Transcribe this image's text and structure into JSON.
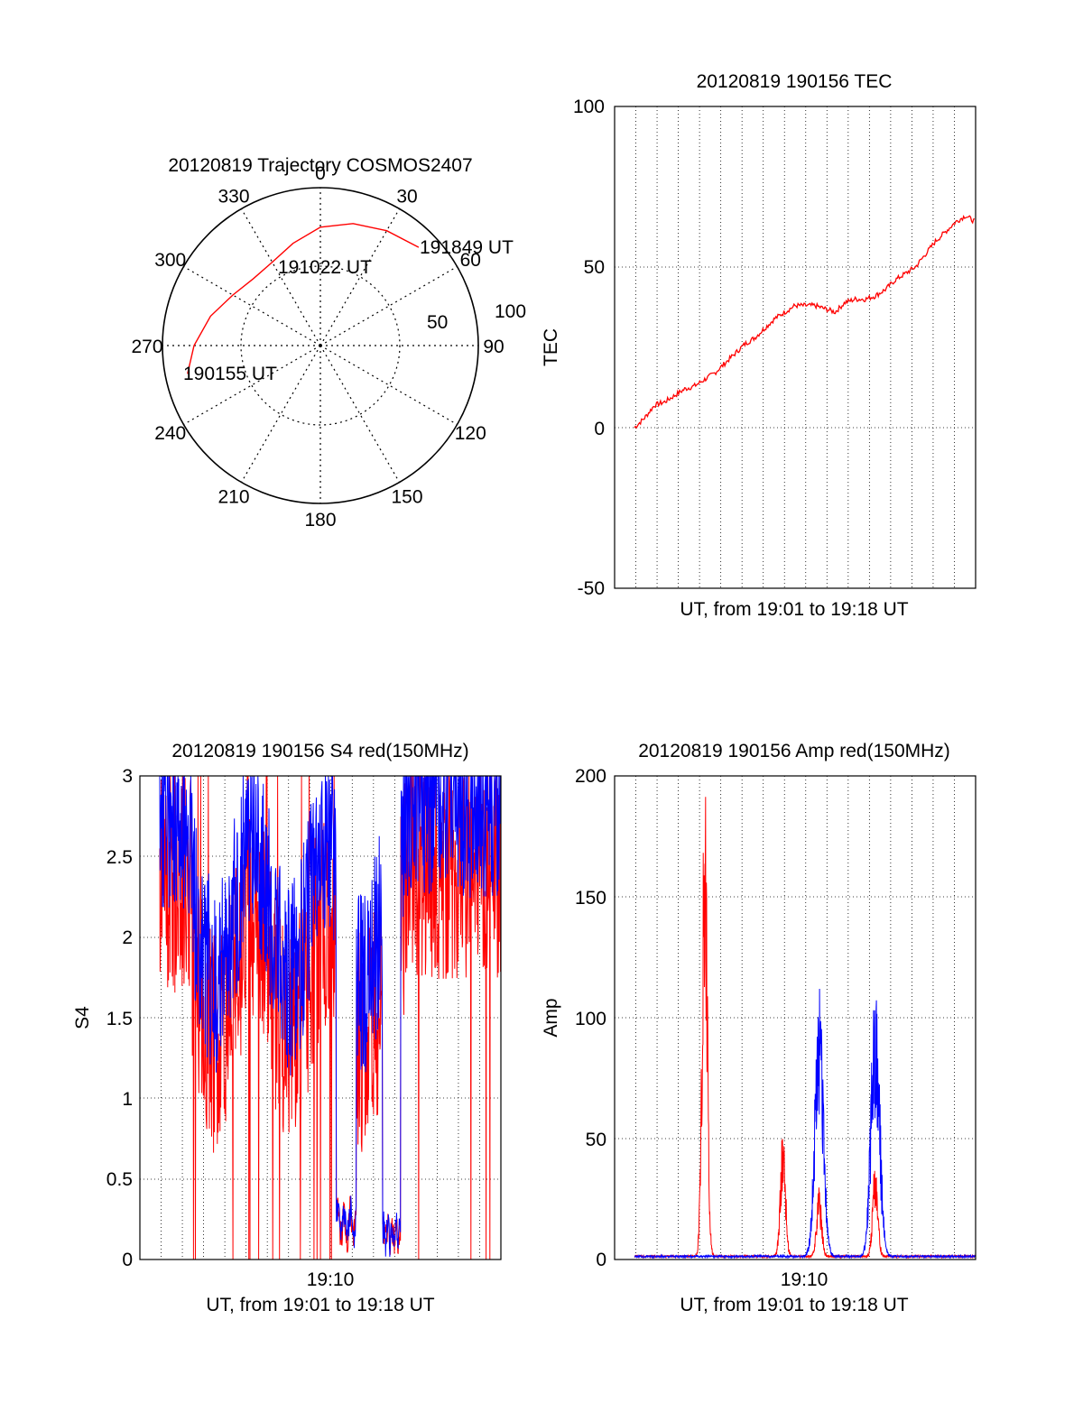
{
  "chart_data": [
    {
      "type": "polar",
      "title": "20120819 Trajectory COSMOS2407",
      "angle_labels": [
        "0",
        "30",
        "60",
        "90",
        "120",
        "150",
        "180",
        "210",
        "240",
        "270",
        "300",
        "330"
      ],
      "radial_labels": [
        "50",
        "100"
      ],
      "trajectory_color": "#ff0000",
      "trajectory": [
        {
          "az": 258,
          "el_radius": 86
        },
        {
          "az": 270,
          "el_radius": 80
        },
        {
          "az": 285,
          "el_radius": 72
        },
        {
          "az": 300,
          "el_radius": 64
        },
        {
          "az": 315,
          "el_radius": 60
        },
        {
          "az": 330,
          "el_radius": 61
        },
        {
          "az": 345,
          "el_radius": 67
        },
        {
          "az": 360,
          "el_radius": 75
        },
        {
          "az": 15,
          "el_radius": 80
        },
        {
          "az": 30,
          "el_radius": 84
        },
        {
          "az": 45,
          "el_radius": 88
        }
      ],
      "annotations": [
        {
          "text": "191849 UT",
          "az": 50,
          "el_radius": 88
        },
        {
          "text": "191022 UT",
          "az": 0,
          "el_radius": 85
        },
        {
          "text": "190155 UT",
          "az": 258,
          "el_radius": 86
        }
      ]
    },
    {
      "type": "line",
      "title": "20120819 190156 TEC",
      "ylabel": "TEC",
      "xlabel": "UT, from 19:01 to 19:18 UT",
      "ylim": [
        -50,
        100
      ],
      "yticks": [
        "-50",
        "0",
        "50",
        "100"
      ],
      "grid": true,
      "series": [
        {
          "color": "#ff0000",
          "x": [
            0,
            0.5,
            1,
            1.5,
            2,
            2.5,
            3,
            3.5,
            4,
            4.5,
            5,
            5.5,
            6,
            6.5,
            7,
            7.5,
            8,
            8.5,
            9,
            9.5,
            10,
            10.5,
            11,
            11.5,
            12,
            12.5,
            13,
            13.5,
            14,
            14.5,
            15,
            15.5,
            16,
            16.5,
            17
          ],
          "values": [
            0,
            3,
            7,
            8,
            10,
            12,
            13,
            15,
            17,
            20,
            23,
            26,
            28,
            31,
            34,
            36,
            38,
            38,
            38,
            37,
            36,
            39,
            40,
            40,
            41,
            43,
            46,
            48,
            50,
            54,
            58,
            61,
            64,
            66,
            64
          ]
        }
      ]
    },
    {
      "type": "line",
      "title": "20120819 190156 S4 red(150MHz)",
      "ylabel": "S4",
      "xlabel": "UT, from 19:01 to 19:18 UT",
      "xtick_label": "19:10",
      "ylim": [
        0,
        3
      ],
      "yticks": [
        "0",
        "0.5",
        "1",
        "1.5",
        "2",
        "2.5",
        "3"
      ],
      "grid": true,
      "series": [
        {
          "color": "#ff0000"
        },
        {
          "color": "#0000ff"
        }
      ]
    },
    {
      "type": "line",
      "title": "20120819 190156 Amp red(150MHz)",
      "ylabel": "Amp",
      "xlabel": "UT, from 19:01 to 19:18 UT",
      "xtick_label": "19:10",
      "ylim": [
        0,
        200
      ],
      "yticks": [
        "0",
        "50",
        "100",
        "150",
        "200"
      ],
      "grid": true,
      "series": [
        {
          "color": "#ff0000",
          "peaks": [
            {
              "x": 3.5,
              "y": 180
            },
            {
              "x": 7.4,
              "y": 48
            },
            {
              "x": 9.2,
              "y": 25
            },
            {
              "x": 12.0,
              "y": 35
            }
          ]
        },
        {
          "color": "#0000ff",
          "peaks": [
            {
              "x": 9.2,
              "y": 97
            },
            {
              "x": 12.0,
              "y": 104
            }
          ]
        }
      ]
    }
  ]
}
